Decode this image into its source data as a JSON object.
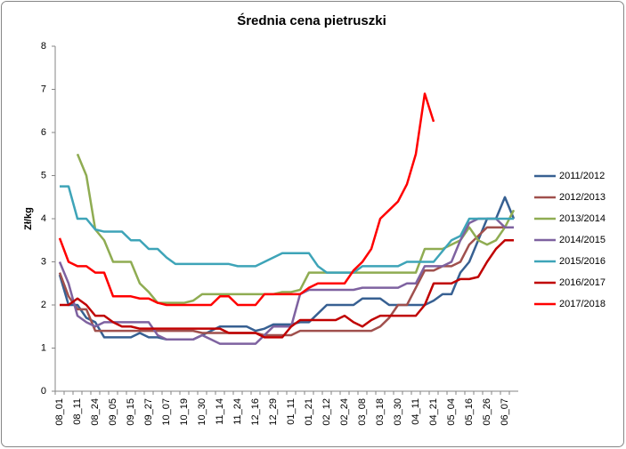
{
  "chart_data": {
    "type": "line",
    "title": "Średnia cena pietruszki",
    "y_label": "Zł/kg",
    "categories": [
      "08_01",
      null,
      "08_11",
      null,
      "08_24",
      null,
      "09_05",
      null,
      "09_15",
      null,
      "09_27",
      null,
      "10_07",
      null,
      "10_19",
      null,
      "10_30",
      null,
      "11_14",
      null,
      "11_24",
      null,
      "12_16",
      null,
      "12_29",
      null,
      "01_11",
      null,
      "01_21",
      null,
      "02_12",
      null,
      "02_24",
      null,
      "03_08",
      null,
      "03_18",
      null,
      "03_30",
      null,
      "04_11",
      null,
      "04_21",
      null,
      "05_04",
      null,
      "05_16",
      null,
      "05_26",
      null,
      "06_07",
      null
    ],
    "ylim": [
      0,
      8
    ],
    "yticks": [
      0,
      1,
      2,
      3,
      4,
      5,
      6,
      7,
      8
    ],
    "grid": false,
    "legend": "right",
    "series": [
      {
        "name": "2011/2012",
        "color": "#376092",
        "values": [
          2.7,
          2.0,
          2.0,
          1.7,
          1.6,
          1.25,
          1.25,
          1.25,
          1.25,
          1.35,
          1.25,
          1.25,
          1.2,
          1.2,
          1.2,
          1.2,
          1.3,
          1.4,
          1.5,
          1.5,
          1.5,
          1.5,
          1.4,
          1.45,
          1.55,
          1.55,
          1.55,
          1.6,
          1.6,
          1.8,
          2.0,
          2.0,
          2.0,
          2.0,
          2.15,
          2.15,
          2.15,
          2.0,
          2.0,
          2.0,
          2.0,
          2.0,
          2.1,
          2.25,
          2.25,
          2.75,
          3.0,
          3.5,
          4.0,
          4.0,
          4.5,
          4.0
        ]
      },
      {
        "name": "2012/2013",
        "color": "#a0504d",
        "values": [
          2.75,
          2.2,
          1.9,
          1.9,
          1.4,
          1.4,
          1.4,
          1.4,
          1.4,
          1.4,
          1.4,
          1.4,
          1.4,
          1.4,
          1.4,
          1.4,
          1.35,
          1.35,
          1.35,
          1.35,
          1.35,
          1.35,
          1.35,
          1.3,
          1.3,
          1.3,
          1.3,
          1.4,
          1.4,
          1.4,
          1.4,
          1.4,
          1.4,
          1.4,
          1.4,
          1.4,
          1.5,
          1.7,
          2.0,
          2.0,
          2.4,
          2.8,
          2.8,
          2.9,
          2.9,
          3.0,
          3.4,
          3.6,
          3.8,
          3.8,
          3.8,
          3.8
        ]
      },
      {
        "name": "2013/2014",
        "color": "#8fac52",
        "values": [
          null,
          null,
          5.5,
          5.0,
          3.75,
          3.5,
          3.0,
          3.0,
          3.0,
          2.5,
          2.3,
          2.05,
          2.05,
          2.05,
          2.05,
          2.1,
          2.25,
          2.25,
          2.25,
          2.25,
          2.25,
          2.25,
          2.25,
          2.25,
          2.25,
          2.3,
          2.3,
          2.35,
          2.75,
          2.75,
          2.75,
          2.75,
          2.75,
          2.75,
          2.75,
          2.75,
          2.75,
          2.75,
          2.75,
          2.75,
          2.75,
          3.3,
          3.3,
          3.3,
          3.4,
          3.5,
          3.8,
          3.5,
          3.4,
          3.5,
          3.8,
          4.2
        ]
      },
      {
        "name": "2014/2015",
        "color": "#7e62a0",
        "values": [
          3.0,
          2.5,
          1.75,
          1.6,
          1.5,
          1.6,
          1.6,
          1.6,
          1.6,
          1.6,
          1.6,
          1.3,
          1.2,
          1.2,
          1.2,
          1.2,
          1.3,
          1.2,
          1.1,
          1.1,
          1.1,
          1.1,
          1.1,
          1.3,
          1.5,
          1.5,
          1.5,
          2.25,
          2.35,
          2.35,
          2.35,
          2.35,
          2.35,
          2.35,
          2.4,
          2.4,
          2.4,
          2.4,
          2.4,
          2.5,
          2.5,
          2.9,
          2.9,
          2.9,
          3.0,
          3.5,
          3.9,
          4.0,
          4.0,
          4.0,
          3.8,
          3.8
        ]
      },
      {
        "name": "2015/2016",
        "color": "#3ea4b8",
        "values": [
          4.75,
          4.75,
          4.0,
          4.0,
          3.75,
          3.7,
          3.7,
          3.7,
          3.5,
          3.5,
          3.3,
          3.3,
          3.1,
          2.95,
          2.95,
          2.95,
          2.95,
          2.95,
          2.95,
          2.95,
          2.9,
          2.9,
          2.9,
          3.0,
          3.1,
          3.2,
          3.2,
          3.2,
          3.2,
          2.9,
          2.75,
          2.75,
          2.75,
          2.75,
          2.9,
          2.9,
          2.9,
          2.9,
          2.9,
          3.0,
          3.0,
          3.0,
          3.0,
          3.25,
          3.5,
          3.6,
          4.0,
          4.0,
          4.0,
          4.0,
          4.0,
          4.0
        ]
      },
      {
        "name": "2016/2017",
        "color": "#c00000",
        "values": [
          2.0,
          2.0,
          2.15,
          2.0,
          1.75,
          1.75,
          1.6,
          1.5,
          1.5,
          1.45,
          1.45,
          1.45,
          1.45,
          1.45,
          1.45,
          1.45,
          1.45,
          1.45,
          1.45,
          1.35,
          1.35,
          1.35,
          1.35,
          1.25,
          1.25,
          1.25,
          1.5,
          1.65,
          1.65,
          1.65,
          1.65,
          1.65,
          1.75,
          1.6,
          1.5,
          1.65,
          1.75,
          1.75,
          1.75,
          1.75,
          1.75,
          2.0,
          2.5,
          2.5,
          2.5,
          2.6,
          2.6,
          2.65,
          3.0,
          3.3,
          3.5,
          3.5
        ]
      },
      {
        "name": "2017/2018",
        "color": "#ff0000",
        "values": [
          3.55,
          3.0,
          2.9,
          2.9,
          2.75,
          2.75,
          2.2,
          2.2,
          2.2,
          2.15,
          2.15,
          2.05,
          2.0,
          2.0,
          2.0,
          2.0,
          2.0,
          2.0,
          2.2,
          2.2,
          2.0,
          2.0,
          2.0,
          2.25,
          2.25,
          2.25,
          2.25,
          2.25,
          2.4,
          2.5,
          2.5,
          2.5,
          2.5,
          2.8,
          3.0,
          3.3,
          4.0,
          4.2,
          4.4,
          4.8,
          5.5,
          6.9,
          6.25,
          null,
          null,
          null,
          null,
          null,
          null,
          null,
          null,
          null
        ]
      }
    ]
  }
}
